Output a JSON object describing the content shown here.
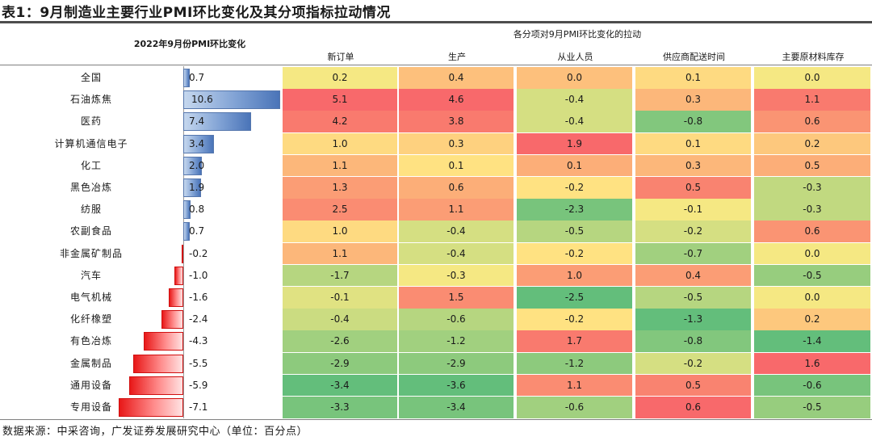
{
  "title": "表1：9月制造业主要行业PMI环比变化及其分项指标拉动情况",
  "left_header": "2022年9月份PMI环比变化",
  "right_header": "各分项对9月PMI环比变化的拉动",
  "source": "数据来源：中采咨询，广发证券发展研究中心（单位：百分点）",
  "chart_data": {
    "type": "table",
    "title": "表1：9月制造业主要行业PMI环比变化及其分项指标拉动情况",
    "columns": [
      "新订单",
      "生产",
      "从业人员",
      "供应商配送时间",
      "主要原材料库存"
    ],
    "bar_scale": {
      "min": -10.6,
      "max": 10.6
    },
    "color_scale": {
      "low": "#63be7b",
      "mid": "#ffeb84",
      "high": "#f8696b"
    },
    "rows": [
      {
        "industry": "全国",
        "pmi_change": 0.7,
        "values": [
          0.2,
          0.4,
          0.0,
          0.1,
          0.0
        ]
      },
      {
        "industry": "石油炼焦",
        "pmi_change": 10.6,
        "values": [
          5.1,
          4.6,
          -0.4,
          0.3,
          1.1
        ]
      },
      {
        "industry": "医药",
        "pmi_change": 7.4,
        "values": [
          4.2,
          3.8,
          -0.4,
          -0.8,
          0.6
        ]
      },
      {
        "industry": "计算机通信电子",
        "pmi_change": 3.4,
        "values": [
          1.0,
          0.3,
          1.9,
          0.1,
          0.2
        ]
      },
      {
        "industry": "化工",
        "pmi_change": 2.0,
        "values": [
          1.1,
          0.1,
          0.1,
          0.3,
          0.5
        ]
      },
      {
        "industry": "黑色冶炼",
        "pmi_change": 1.9,
        "values": [
          1.3,
          0.6,
          -0.2,
          0.5,
          -0.3
        ]
      },
      {
        "industry": "纺服",
        "pmi_change": 0.8,
        "values": [
          2.5,
          1.1,
          -2.3,
          -0.1,
          -0.3
        ]
      },
      {
        "industry": "农副食品",
        "pmi_change": 0.7,
        "values": [
          1.0,
          -0.4,
          -0.5,
          -0.2,
          0.6
        ]
      },
      {
        "industry": "非金属矿制品",
        "pmi_change": -0.2,
        "values": [
          1.1,
          -0.4,
          -0.2,
          -0.7,
          0.0
        ]
      },
      {
        "industry": "汽车",
        "pmi_change": -1.0,
        "values": [
          -1.7,
          -0.3,
          1.0,
          0.4,
          -0.5
        ]
      },
      {
        "industry": "电气机械",
        "pmi_change": -1.6,
        "values": [
          -0.1,
          1.5,
          -2.5,
          -0.5,
          0.0
        ]
      },
      {
        "industry": "化纤橡塑",
        "pmi_change": -2.4,
        "values": [
          -0.4,
          -0.6,
          -0.2,
          -1.3,
          0.2
        ]
      },
      {
        "industry": "有色冶炼",
        "pmi_change": -4.3,
        "values": [
          -2.6,
          -1.2,
          1.7,
          -0.8,
          -1.4
        ]
      },
      {
        "industry": "金属制品",
        "pmi_change": -5.5,
        "values": [
          -2.9,
          -2.9,
          -1.2,
          -0.2,
          1.6
        ]
      },
      {
        "industry": "通用设备",
        "pmi_change": -5.9,
        "values": [
          -3.4,
          -3.6,
          1.1,
          0.5,
          -0.6
        ]
      },
      {
        "industry": "专用设备",
        "pmi_change": -7.1,
        "values": [
          -3.3,
          -3.4,
          -0.6,
          0.6,
          -0.5
        ]
      }
    ]
  }
}
